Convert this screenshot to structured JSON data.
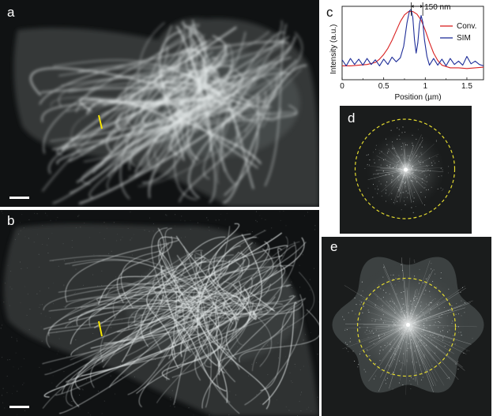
{
  "figure": {
    "panels": {
      "a": {
        "label": "a"
      },
      "b": {
        "label": "b"
      },
      "c": {
        "label": "c"
      },
      "d": {
        "label": "d"
      },
      "e": {
        "label": "e"
      }
    },
    "annotation_label": "150 nm",
    "colors": {
      "background": "#ffffff",
      "microscopy_background": "#101213",
      "cell_body": "#343838",
      "filament": "#e7ecec",
      "line_marker": "#f7e600",
      "conv_line": "#d92121",
      "sim_line": "#1f2e99",
      "dashed_circle": "#e4db2f"
    }
  },
  "chart_data": {
    "type": "line",
    "xlabel": "Position (µm)",
    "ylabel": "Intensity (a.u.)",
    "xlim": [
      0,
      1.7
    ],
    "xticks": [
      0,
      0.5,
      1,
      1.5
    ],
    "xtick_labels": [
      "0",
      "0.5",
      "1",
      "1.5"
    ],
    "grid": false,
    "legend_position": "top-right",
    "series": [
      {
        "name": "Conv.",
        "color": "#d92121",
        "x": [
          0,
          0.1,
          0.2,
          0.3,
          0.4,
          0.45,
          0.5,
          0.55,
          0.6,
          0.65,
          0.7,
          0.75,
          0.8,
          0.85,
          0.9,
          0.95,
          1.0,
          1.05,
          1.1,
          1.15,
          1.2,
          1.3,
          1.4,
          1.5,
          1.6,
          1.7
        ],
        "y": [
          0.16,
          0.16,
          0.17,
          0.18,
          0.21,
          0.26,
          0.33,
          0.42,
          0.54,
          0.68,
          0.82,
          0.92,
          0.97,
          0.97,
          0.93,
          0.84,
          0.69,
          0.51,
          0.35,
          0.24,
          0.17,
          0.13,
          0.13,
          0.12,
          0.13,
          0.14
        ]
      },
      {
        "name": "SIM",
        "color": "#1f2e99",
        "x": [
          0,
          0.05,
          0.1,
          0.15,
          0.2,
          0.25,
          0.3,
          0.35,
          0.4,
          0.45,
          0.5,
          0.55,
          0.6,
          0.65,
          0.7,
          0.74,
          0.78,
          0.81,
          0.83,
          0.85,
          0.87,
          0.89,
          0.91,
          0.93,
          0.95,
          0.97,
          0.99,
          1.02,
          1.05,
          1.1,
          1.15,
          1.2,
          1.25,
          1.3,
          1.35,
          1.4,
          1.45,
          1.5,
          1.55,
          1.6,
          1.65,
          1.7
        ],
        "y": [
          0.25,
          0.16,
          0.27,
          0.18,
          0.26,
          0.17,
          0.27,
          0.18,
          0.25,
          0.16,
          0.26,
          0.18,
          0.29,
          0.22,
          0.28,
          0.45,
          0.8,
          0.98,
          1.0,
          0.88,
          0.55,
          0.35,
          0.5,
          0.78,
          0.91,
          0.81,
          0.55,
          0.3,
          0.17,
          0.27,
          0.17,
          0.26,
          0.16,
          0.27,
          0.18,
          0.23,
          0.17,
          0.3,
          0.19,
          0.23,
          0.18,
          0.16
        ]
      }
    ],
    "annotations": [
      {
        "text": "150 nm",
        "type": "double-arrow",
        "x_start": 0.83,
        "x_end": 0.97
      }
    ]
  }
}
